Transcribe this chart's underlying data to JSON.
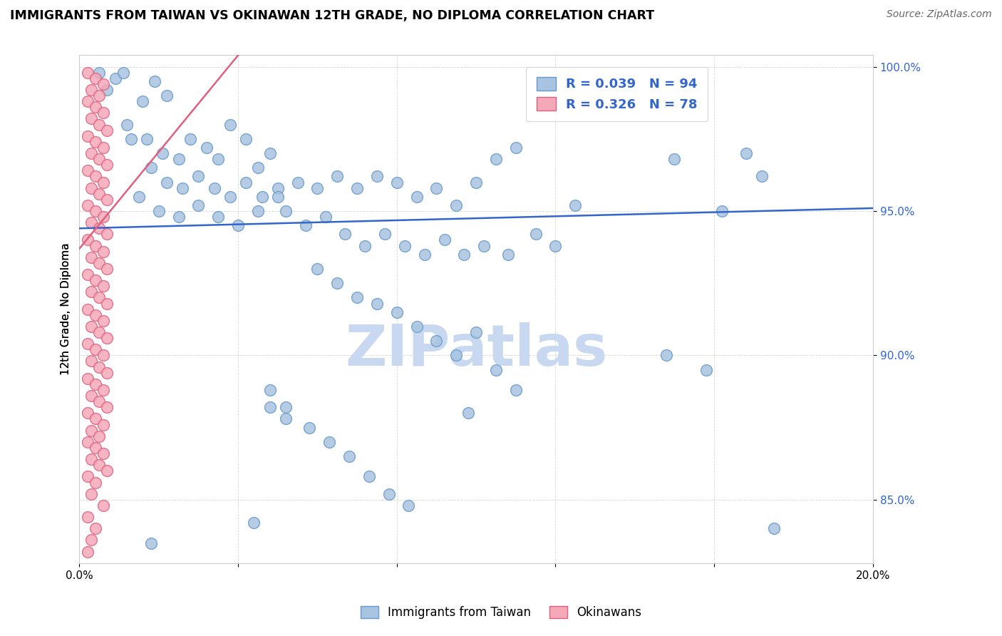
{
  "title": "IMMIGRANTS FROM TAIWAN VS OKINAWAN 12TH GRADE, NO DIPLOMA CORRELATION CHART",
  "source": "Source: ZipAtlas.com",
  "ylabel": "12th Grade, No Diploma",
  "x_min": 0.0,
  "x_max": 0.2,
  "y_min": 0.828,
  "y_max": 1.004,
  "taiwan_color": "#a8c4e0",
  "taiwan_edge": "#6699cc",
  "okinawa_color": "#f4a8b8",
  "okinawa_edge": "#e06080",
  "taiwan_R": 0.039,
  "taiwan_N": 94,
  "okinawa_R": 0.326,
  "okinawa_N": 78,
  "taiwan_line_color": "#3366cc",
  "okinawa_line_color": "#e06080",
  "watermark": "ZIPatlas",
  "watermark_color": "#c8d8f0",
  "legend_text_color": "#3366cc",
  "taiwan_line": [
    0.0,
    0.944,
    0.2,
    0.951
  ],
  "okinawa_line": [
    0.0,
    0.937,
    0.04,
    1.004
  ],
  "taiwan_points": [
    [
      0.005,
      0.998
    ],
    [
      0.007,
      0.992
    ],
    [
      0.009,
      0.996
    ],
    [
      0.011,
      0.998
    ],
    [
      0.013,
      0.975
    ],
    [
      0.016,
      0.988
    ],
    [
      0.019,
      0.995
    ],
    [
      0.022,
      0.99
    ],
    [
      0.012,
      0.98
    ],
    [
      0.017,
      0.975
    ],
    [
      0.021,
      0.97
    ],
    [
      0.025,
      0.968
    ],
    [
      0.028,
      0.975
    ],
    [
      0.032,
      0.972
    ],
    [
      0.035,
      0.968
    ],
    [
      0.038,
      0.98
    ],
    [
      0.042,
      0.975
    ],
    [
      0.045,
      0.965
    ],
    [
      0.048,
      0.97
    ],
    [
      0.018,
      0.965
    ],
    [
      0.022,
      0.96
    ],
    [
      0.026,
      0.958
    ],
    [
      0.03,
      0.962
    ],
    [
      0.034,
      0.958
    ],
    [
      0.038,
      0.955
    ],
    [
      0.042,
      0.96
    ],
    [
      0.046,
      0.955
    ],
    [
      0.05,
      0.958
    ],
    [
      0.015,
      0.955
    ],
    [
      0.02,
      0.95
    ],
    [
      0.025,
      0.948
    ],
    [
      0.03,
      0.952
    ],
    [
      0.035,
      0.948
    ],
    [
      0.04,
      0.945
    ],
    [
      0.045,
      0.95
    ],
    [
      0.05,
      0.955
    ],
    [
      0.055,
      0.96
    ],
    [
      0.06,
      0.958
    ],
    [
      0.065,
      0.962
    ],
    [
      0.07,
      0.958
    ],
    [
      0.075,
      0.962
    ],
    [
      0.08,
      0.96
    ],
    [
      0.085,
      0.955
    ],
    [
      0.09,
      0.958
    ],
    [
      0.095,
      0.952
    ],
    [
      0.1,
      0.96
    ],
    [
      0.105,
      0.968
    ],
    [
      0.11,
      0.972
    ],
    [
      0.052,
      0.95
    ],
    [
      0.057,
      0.945
    ],
    [
      0.062,
      0.948
    ],
    [
      0.067,
      0.942
    ],
    [
      0.072,
      0.938
    ],
    [
      0.077,
      0.942
    ],
    [
      0.082,
      0.938
    ],
    [
      0.087,
      0.935
    ],
    [
      0.092,
      0.94
    ],
    [
      0.097,
      0.935
    ],
    [
      0.102,
      0.938
    ],
    [
      0.108,
      0.935
    ],
    [
      0.06,
      0.93
    ],
    [
      0.065,
      0.925
    ],
    [
      0.07,
      0.92
    ],
    [
      0.075,
      0.918
    ],
    [
      0.08,
      0.915
    ],
    [
      0.085,
      0.91
    ],
    [
      0.09,
      0.905
    ],
    [
      0.095,
      0.9
    ],
    [
      0.1,
      0.908
    ],
    [
      0.105,
      0.895
    ],
    [
      0.11,
      0.888
    ],
    [
      0.048,
      0.882
    ],
    [
      0.052,
      0.878
    ],
    [
      0.058,
      0.875
    ],
    [
      0.063,
      0.87
    ],
    [
      0.068,
      0.865
    ],
    [
      0.073,
      0.858
    ],
    [
      0.078,
      0.852
    ],
    [
      0.083,
      0.848
    ],
    [
      0.044,
      0.842
    ],
    [
      0.15,
      0.968
    ],
    [
      0.162,
      0.95
    ],
    [
      0.172,
      0.962
    ],
    [
      0.148,
      0.9
    ],
    [
      0.158,
      0.895
    ],
    [
      0.168,
      0.97
    ],
    [
      0.175,
      0.84
    ],
    [
      0.018,
      0.835
    ],
    [
      0.048,
      0.888
    ],
    [
      0.052,
      0.882
    ],
    [
      0.098,
      0.88
    ],
    [
      0.115,
      0.942
    ],
    [
      0.12,
      0.938
    ],
    [
      0.125,
      0.952
    ]
  ],
  "okinawa_points": [
    [
      0.002,
      0.998
    ],
    [
      0.004,
      0.996
    ],
    [
      0.006,
      0.994
    ],
    [
      0.003,
      0.992
    ],
    [
      0.005,
      0.99
    ],
    [
      0.002,
      0.988
    ],
    [
      0.004,
      0.986
    ],
    [
      0.006,
      0.984
    ],
    [
      0.003,
      0.982
    ],
    [
      0.005,
      0.98
    ],
    [
      0.007,
      0.978
    ],
    [
      0.002,
      0.976
    ],
    [
      0.004,
      0.974
    ],
    [
      0.006,
      0.972
    ],
    [
      0.003,
      0.97
    ],
    [
      0.005,
      0.968
    ],
    [
      0.007,
      0.966
    ],
    [
      0.002,
      0.964
    ],
    [
      0.004,
      0.962
    ],
    [
      0.006,
      0.96
    ],
    [
      0.003,
      0.958
    ],
    [
      0.005,
      0.956
    ],
    [
      0.007,
      0.954
    ],
    [
      0.002,
      0.952
    ],
    [
      0.004,
      0.95
    ],
    [
      0.006,
      0.948
    ],
    [
      0.003,
      0.946
    ],
    [
      0.005,
      0.944
    ],
    [
      0.007,
      0.942
    ],
    [
      0.002,
      0.94
    ],
    [
      0.004,
      0.938
    ],
    [
      0.006,
      0.936
    ],
    [
      0.003,
      0.934
    ],
    [
      0.005,
      0.932
    ],
    [
      0.007,
      0.93
    ],
    [
      0.002,
      0.928
    ],
    [
      0.004,
      0.926
    ],
    [
      0.006,
      0.924
    ],
    [
      0.003,
      0.922
    ],
    [
      0.005,
      0.92
    ],
    [
      0.007,
      0.918
    ],
    [
      0.002,
      0.916
    ],
    [
      0.004,
      0.914
    ],
    [
      0.006,
      0.912
    ],
    [
      0.003,
      0.91
    ],
    [
      0.005,
      0.908
    ],
    [
      0.007,
      0.906
    ],
    [
      0.002,
      0.904
    ],
    [
      0.004,
      0.902
    ],
    [
      0.006,
      0.9
    ],
    [
      0.003,
      0.898
    ],
    [
      0.005,
      0.896
    ],
    [
      0.007,
      0.894
    ],
    [
      0.002,
      0.892
    ],
    [
      0.004,
      0.89
    ],
    [
      0.006,
      0.888
    ],
    [
      0.003,
      0.886
    ],
    [
      0.005,
      0.884
    ],
    [
      0.007,
      0.882
    ],
    [
      0.002,
      0.88
    ],
    [
      0.004,
      0.878
    ],
    [
      0.006,
      0.876
    ],
    [
      0.003,
      0.874
    ],
    [
      0.005,
      0.872
    ],
    [
      0.002,
      0.87
    ],
    [
      0.004,
      0.868
    ],
    [
      0.006,
      0.866
    ],
    [
      0.003,
      0.864
    ],
    [
      0.005,
      0.862
    ],
    [
      0.007,
      0.86
    ],
    [
      0.002,
      0.858
    ],
    [
      0.004,
      0.856
    ],
    [
      0.003,
      0.852
    ],
    [
      0.006,
      0.848
    ],
    [
      0.002,
      0.844
    ],
    [
      0.004,
      0.84
    ],
    [
      0.003,
      0.836
    ],
    [
      0.002,
      0.832
    ]
  ]
}
